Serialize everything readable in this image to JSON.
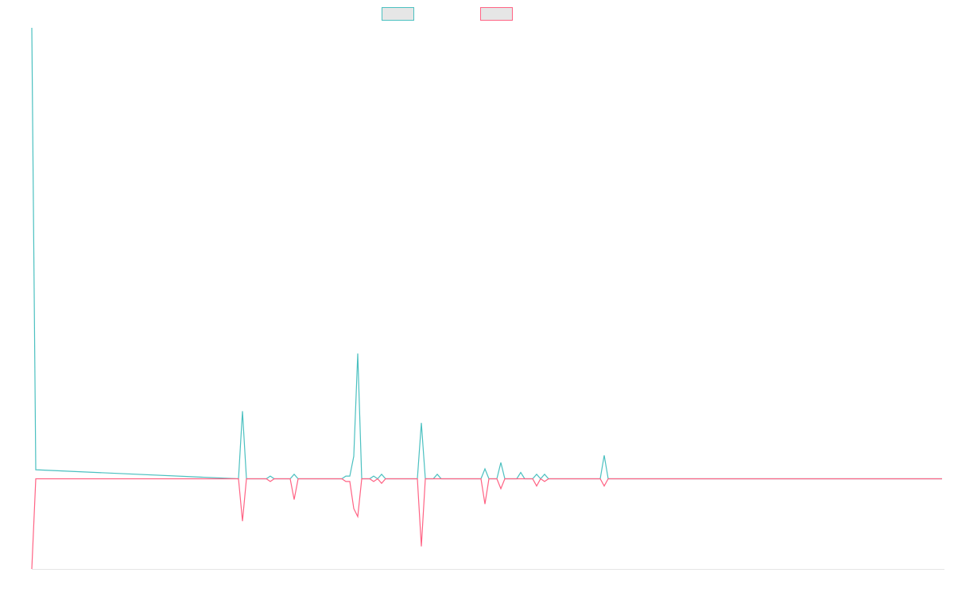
{
  "chart_data": {
    "type": "line",
    "x": [
      0,
      1,
      52,
      53,
      54,
      59,
      60,
      61,
      65,
      66,
      67,
      78,
      79,
      80,
      81,
      82,
      83,
      85,
      86,
      87,
      88,
      89,
      97,
      98,
      99,
      101,
      102,
      103,
      113,
      114,
      115,
      117,
      118,
      119,
      122,
      123,
      124,
      126,
      127,
      128,
      129,
      130,
      143,
      144,
      145,
      229
    ],
    "series": [
      {
        "color": "#4bc0c0",
        "values": [
          5,
          0.1,
          0,
          0.75,
          0,
          0,
          0.03,
          0,
          0,
          0.05,
          0,
          0,
          0.03,
          0.03,
          0.25,
          1.39,
          0,
          0,
          0.03,
          0,
          0.05,
          0,
          0,
          0.62,
          0,
          0,
          0.05,
          0,
          0,
          0.11,
          0,
          0,
          0.18,
          0,
          0,
          0.07,
          0,
          0,
          0.05,
          0,
          0.05,
          0,
          0,
          0.26,
          0,
          0
        ]
      },
      {
        "color": "#ff6384",
        "values": [
          -1,
          0,
          0,
          -0.47,
          0,
          0,
          -0.03,
          0,
          0,
          -0.23,
          0,
          0,
          -0.03,
          -0.03,
          -0.33,
          -0.42,
          0,
          0,
          -0.03,
          0,
          -0.05,
          0,
          0,
          -0.75,
          0,
          0,
          0,
          0,
          0,
          -0.28,
          0,
          0,
          -0.11,
          0,
          0,
          0,
          0,
          0,
          -0.08,
          0,
          -0.03,
          0,
          0,
          -0.08,
          0,
          0
        ]
      }
    ],
    "xlim": [
      0,
      229.6
    ],
    "ylim": [
      -1,
      5
    ]
  }
}
